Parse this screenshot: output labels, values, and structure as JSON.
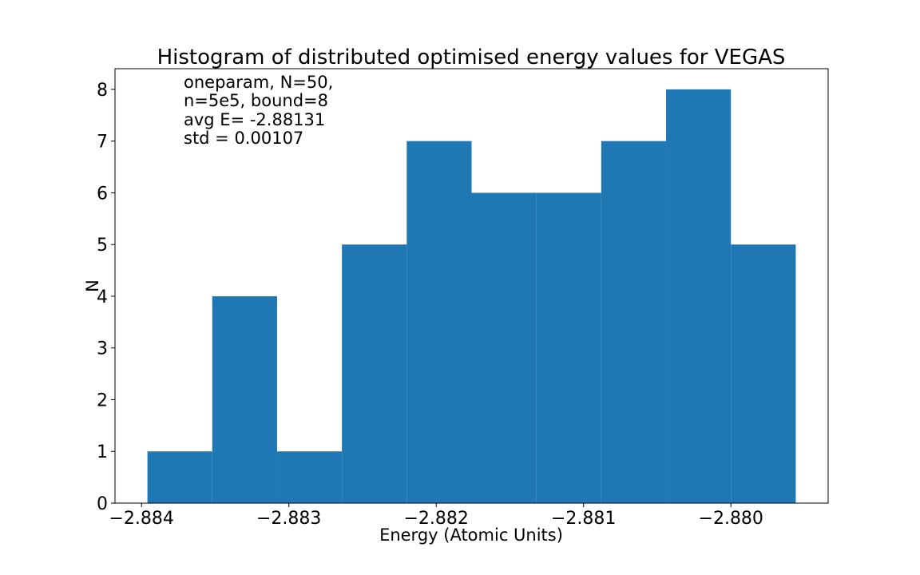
{
  "chart_data": {
    "type": "bar",
    "title": "Histogram of distributed optimised energy values for VEGAS",
    "xlabel": "Energy (Atomic Units)",
    "ylabel": "N",
    "bin_edges": [
      -2.88396,
      -2.88352,
      -2.88308,
      -2.88264,
      -2.8822,
      -2.88176,
      -2.88132,
      -2.88088,
      -2.88044,
      -2.88,
      -2.87956
    ],
    "values": [
      1,
      4,
      1,
      5,
      7,
      6,
      6,
      7,
      8,
      5
    ],
    "xlim": [
      -2.88418,
      -2.87934
    ],
    "ylim": [
      0,
      8.4
    ],
    "x_ticks": [
      {
        "value": -2.884,
        "label": "−2.884"
      },
      {
        "value": -2.883,
        "label": "−2.883"
      },
      {
        "value": -2.882,
        "label": "−2.882"
      },
      {
        "value": -2.881,
        "label": "−2.881"
      },
      {
        "value": -2.88,
        "label": "−2.880"
      }
    ],
    "y_ticks": [
      {
        "value": 0,
        "label": "0"
      },
      {
        "value": 1,
        "label": "1"
      },
      {
        "value": 2,
        "label": "2"
      },
      {
        "value": 3,
        "label": "3"
      },
      {
        "value": 4,
        "label": "4"
      },
      {
        "value": 5,
        "label": "5"
      },
      {
        "value": 6,
        "label": "6"
      },
      {
        "value": 7,
        "label": "7"
      },
      {
        "value": 8,
        "label": "8"
      }
    ],
    "annotation_lines": [
      "oneparam, N=50,",
      "n=5e5, bound=8",
      "avg E= -2.88131",
      "std = 0.00107"
    ],
    "bar_color": "#1f77b4",
    "grid": false,
    "legend": "none"
  }
}
